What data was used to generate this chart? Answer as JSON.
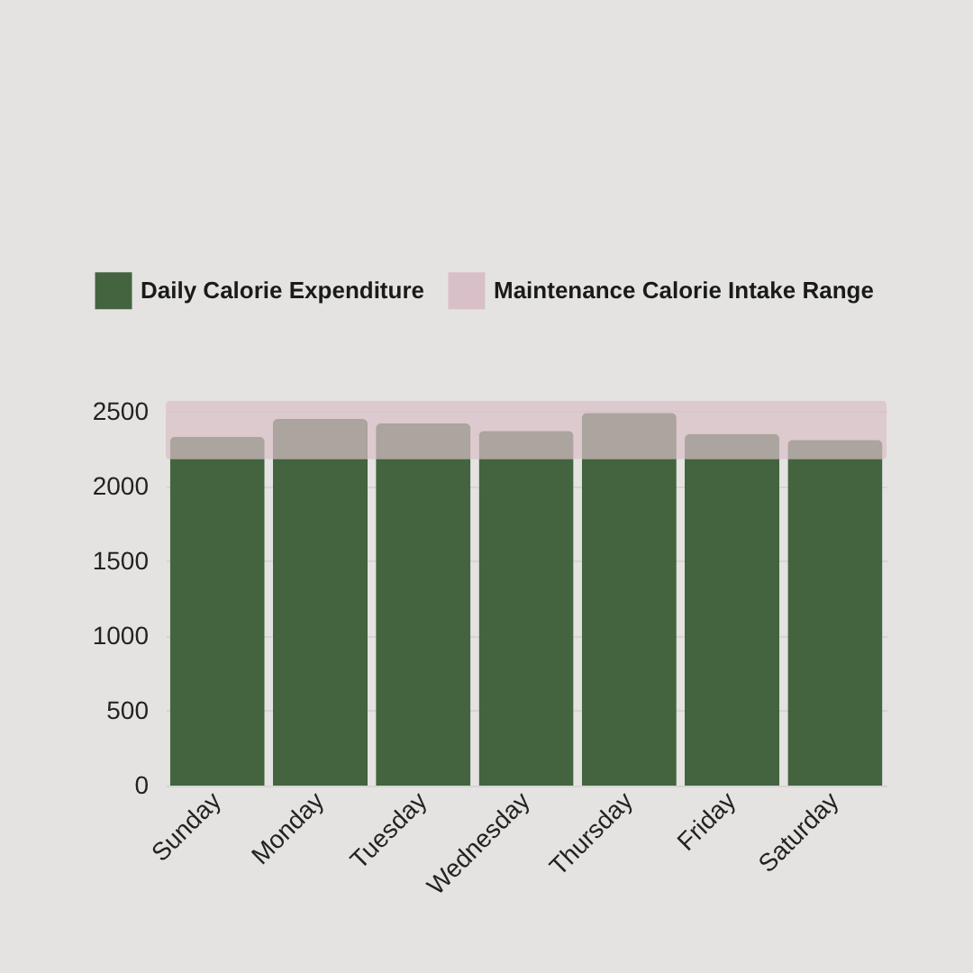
{
  "chart_data": {
    "type": "bar",
    "categories": [
      "Sunday",
      "Monday",
      "Tuesday",
      "Wednesday",
      "Thursday",
      "Friday",
      "Saturday"
    ],
    "series": [
      {
        "name": "Daily Calorie Expenditure",
        "color": "#43643f",
        "values": [
          2330,
          2450,
          2420,
          2370,
          2490,
          2350,
          2310
        ]
      }
    ],
    "bands": [
      {
        "axis": "y",
        "from": 2180,
        "to": 2570,
        "label": "Maintenance Calorie Intake Range",
        "color": "#d9bfc8"
      }
    ],
    "ylim": [
      0,
      2600
    ],
    "yticks": [
      0,
      500,
      1000,
      1500,
      2000,
      2500
    ],
    "grid": "y",
    "legend": "top"
  }
}
